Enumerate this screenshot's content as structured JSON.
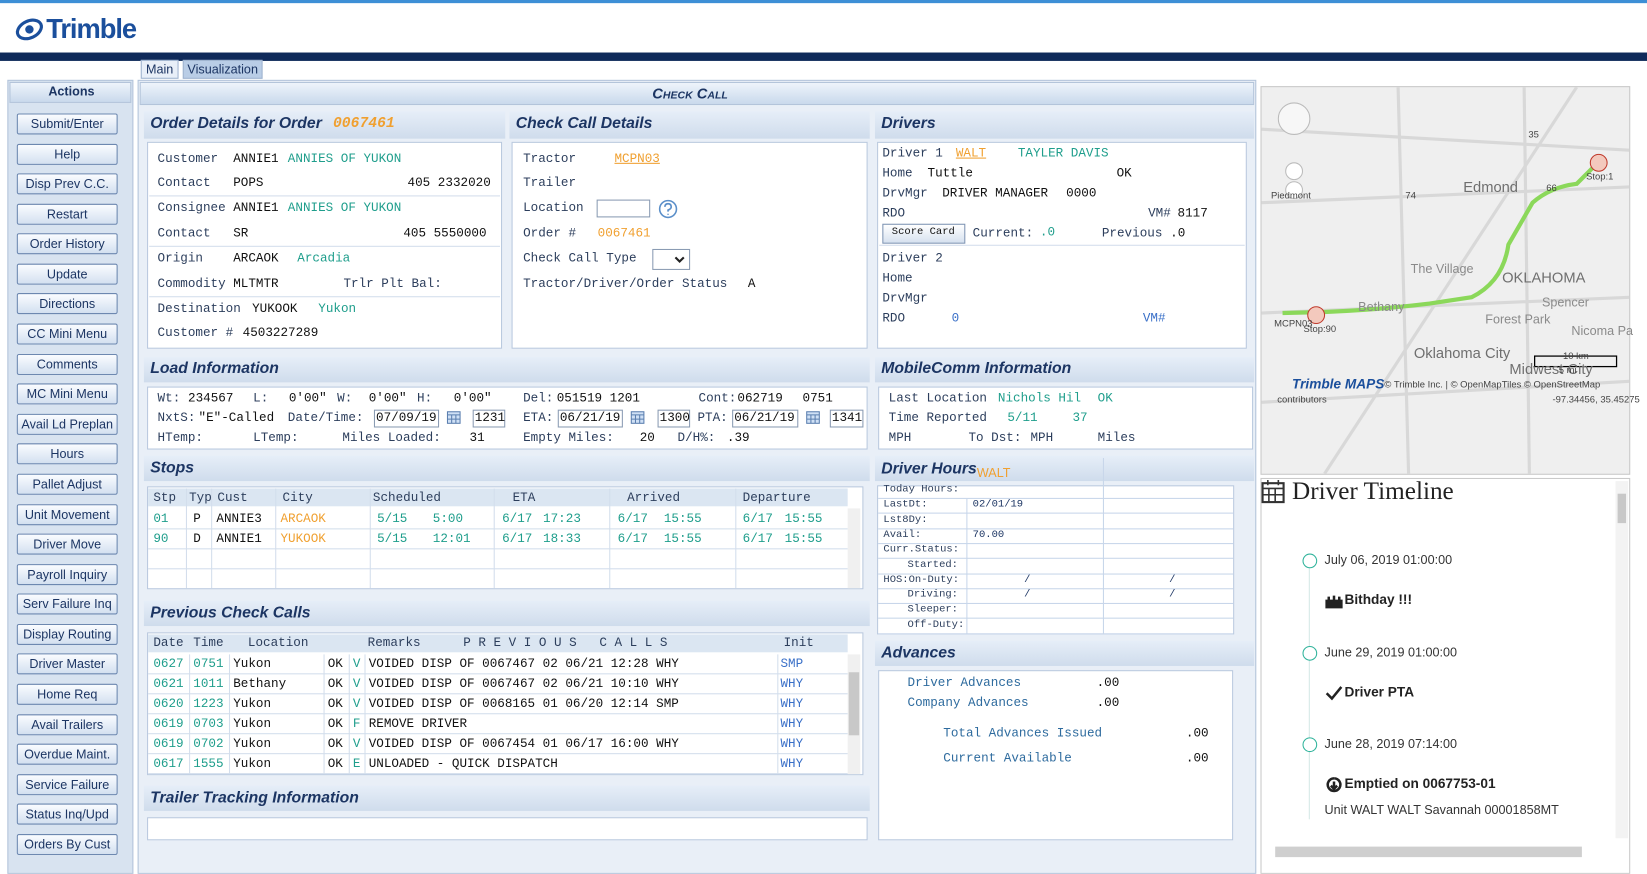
{
  "header": {
    "logo": "Trimble"
  },
  "tabs": [
    "Main",
    "Visualization"
  ],
  "actions": {
    "title": "Actions",
    "buttons": [
      "Submit/Enter",
      "Help",
      "Disp Prev C.C.",
      "Restart",
      "Order History",
      "Update",
      "Directions",
      "CC Mini Menu",
      "Comments",
      "MC Mini Menu",
      "Avail Ld Preplan",
      "Hours",
      "Pallet Adjust",
      "Unit Movement",
      "Driver Move",
      "Payroll Inquiry",
      "Serv Failure Inq",
      "Display Routing",
      "Driver Master",
      "Home Req",
      "Avail Trailers",
      "Overdue Maint.",
      "Service Failure",
      "Status Inq/Upd",
      "Orders By Cust"
    ]
  },
  "check_call": {
    "title": "Check Call"
  },
  "order_details": {
    "title": "Order Details for Order",
    "order_no": "0067461",
    "customer": {
      "label": "Customer",
      "code": "ANNIE1",
      "name": "ANNIES OF YUKON"
    },
    "contact1": {
      "label": "Contact",
      "name": "POPS",
      "phone": "405 2332020"
    },
    "consignee": {
      "label": "Consignee",
      "code": "ANNIE1",
      "name": "ANNIES OF YUKON"
    },
    "contact2": {
      "label": "Contact",
      "name": "SR",
      "phone": "405 5550000"
    },
    "origin": {
      "label": "Origin",
      "code": "ARCAOK",
      "name": "Arcadia"
    },
    "commodity": {
      "label": "Commodity",
      "code": "MLTMTR",
      "trlr_label": "Trlr Plt Bal:"
    },
    "destination": {
      "label": "Destination",
      "code": "YUKOOK",
      "name": "Yukon"
    },
    "customer_no": {
      "label": "Customer #",
      "value": "4503227289"
    }
  },
  "check_call_details": {
    "title": "Check Call Details",
    "tractor_label": "Tractor",
    "tractor": "MCPN03",
    "trailer_label": "Trailer",
    "location_label": "Location",
    "order_label": "Order #",
    "order": "0067461",
    "type_label": "Check Call Type",
    "status_label": "Tractor/Driver/Order Status",
    "status": "A"
  },
  "drivers": {
    "title": "Drivers",
    "driver1_label": "Driver 1",
    "driver1_code": "WALT",
    "driver1_name": "TAYLER DAVIS",
    "home_label": "Home",
    "home": "Tuttle",
    "home_state": "OK",
    "drvmgr_label": "DrvMgr",
    "drvmgr": "DRIVER MANAGER",
    "drvmgr_no": "0000",
    "rdo_label": "RDO",
    "vm_label": "VM#",
    "vm": "8117",
    "score_card": "Score Card",
    "current_label": "Current:",
    "current": ".0",
    "previous_label": "Previous",
    "previous": ".0",
    "driver2_label": "Driver 2",
    "home2_label": "Home",
    "drvmgr2_label": "DrvMgr",
    "rdo2_label": "RDO",
    "rdo2": "0",
    "vm2_label": "VM#"
  },
  "load_info": {
    "title": "Load Information",
    "wt": {
      "label": "Wt:",
      "value": "234567"
    },
    "l": {
      "label": "L:",
      "value": "0'00\""
    },
    "w": {
      "label": "W:",
      "value": "0'00\""
    },
    "h": {
      "label": "H:",
      "value": "0'00\""
    },
    "del": {
      "label": "Del:",
      "value": "051519 1201"
    },
    "cont": {
      "label": "Cont:",
      "date": "062719",
      "time": "0751"
    },
    "nxts": {
      "label": "NxtS:",
      "value": "\"E\"-Called"
    },
    "date_time": {
      "label": "Date/Time:",
      "date": "07/09/19",
      "time": "1231"
    },
    "eta": {
      "label": "ETA:",
      "date": "06/21/19",
      "time": "1300"
    },
    "pta": {
      "label": "PTA:",
      "date": "06/21/19",
      "time": "1341"
    },
    "htemp": {
      "label": "HTemp:"
    },
    "ltemp": {
      "label": "LTemp:"
    },
    "miles_loaded": {
      "label": "Miles Loaded:",
      "value": "31"
    },
    "empty_miles": {
      "label": "Empty Miles:",
      "value": "20"
    },
    "dh": {
      "label": "D/H%:",
      "value": ".39"
    }
  },
  "mobilecomm": {
    "title": "MobileComm Information",
    "last_label": "Last Location",
    "last": "Nichols Hil",
    "last_state": "OK",
    "time_label": "Time Reported",
    "time_date": "5/11",
    "time_val": "37",
    "mph_label": "MPH",
    "dst_label": "To Dst:",
    "dst_unit": "MPH",
    "miles_label": "Miles"
  },
  "stops": {
    "title": "Stops",
    "columns": [
      "Stp",
      "Typ",
      "Cust",
      "City",
      "Scheduled",
      "ETA",
      "Arrived",
      "Departure"
    ],
    "rows": [
      [
        "01",
        "P",
        "ANNIE3",
        "ARCAOK",
        "5/15",
        "5:00",
        "6/17",
        "17:23",
        "6/17",
        "15:55",
        "6/17",
        "15:55"
      ],
      [
        "90",
        "D",
        "ANNIE1",
        "YUKOOK",
        "5/15",
        "12:01",
        "6/17",
        "18:33",
        "6/17",
        "15:55",
        "6/17",
        "15:55"
      ]
    ]
  },
  "driver_hours": {
    "title": "Driver Hours",
    "driver": "WALT",
    "rows": [
      {
        "label": "Today Hours:"
      },
      {
        "label": "LastDt:",
        "values": [
          "02/01/19"
        ]
      },
      {
        "label": "Lst8Dy:"
      },
      {
        "label": "Avail:",
        "values": [
          "70.00"
        ]
      },
      {
        "label": "Curr.Status:"
      },
      {
        "label": "Started:"
      },
      {
        "label": "HOS:On-Duty:",
        "values": [
          "/",
          "/"
        ]
      },
      {
        "label": "Driving:",
        "values": [
          "/",
          "/"
        ]
      },
      {
        "label": "Sleeper:"
      },
      {
        "label": "Off-Duty:"
      }
    ]
  },
  "previous_calls": {
    "title": "Previous Check Calls",
    "columns": [
      "Date",
      "Time",
      "Location",
      "Remarks",
      "P R E V I O U S   C A L L S",
      "Init"
    ],
    "rows": [
      [
        "0627",
        "0751",
        "Yukon",
        "OK",
        "V",
        "VOIDED DISP OF 0067467 02 06/21 12:28 WHY",
        "SMP"
      ],
      [
        "0621",
        "1011",
        "Bethany",
        "OK",
        "V",
        "VOIDED DISP OF 0067467 02 06/21 10:10 WHY",
        "WHY"
      ],
      [
        "0620",
        "1223",
        "Yukon",
        "OK",
        "V",
        "VOIDED DISP OF 0068165 01 06/20 12:14 SMP",
        "WHY"
      ],
      [
        "0619",
        "0703",
        "Yukon",
        "OK",
        "F",
        "REMOVE DRIVER",
        "WHY"
      ],
      [
        "0619",
        "0702",
        "Yukon",
        "OK",
        "V",
        "VOIDED DISP OF 0067454 01 06/17 16:00 WHY",
        "WHY"
      ],
      [
        "0617",
        "1555",
        "Yukon",
        "OK",
        "E",
        "UNLOADED - QUICK DISPATCH",
        "WHY"
      ]
    ]
  },
  "advances": {
    "title": "Advances",
    "driver_label": "Driver Advances",
    "driver": ".00",
    "company_label": "Company Advances",
    "company": ".00",
    "total_label": "Total Advances Issued",
    "total": ".00",
    "current_label": "Current Available",
    "current": ".00"
  },
  "trailer_tracking": {
    "title": "Trailer Tracking Information"
  },
  "map": {
    "places": [
      "Edmond",
      "Piedmont",
      "The Village",
      "OKLAHOMA",
      "Bethany",
      "Spencer",
      "Forest Park",
      "Oklahoma City",
      "Midwest City",
      "Nicoma Pa"
    ],
    "roads": [
      "74",
      "66",
      "35"
    ],
    "unit": "MCPN03",
    "stop_start": "Stop:90",
    "stop_end": "Stop:1",
    "scale_km": "10 km",
    "scale_mi": "5 mi",
    "brand": "Trimble MAPS",
    "attribution": "© Trimble Inc. | © OpenMapTiles © OpenStreetMap",
    "attribution2": "contributors",
    "coords": "-97.34456, 35.45275"
  },
  "timeline": {
    "title": "Driver Timeline",
    "events": [
      {
        "time": "July 06, 2019 01:00:00",
        "label": "Bithday !!!"
      },
      {
        "time": "June 29, 2019 01:00:00",
        "label": "Driver PTA"
      },
      {
        "time": "June 28, 2019 07:14:00",
        "label": "Emptied on 0067753-01",
        "detail": "Unit WALT WALT Savannah 00001858MT"
      }
    ]
  }
}
